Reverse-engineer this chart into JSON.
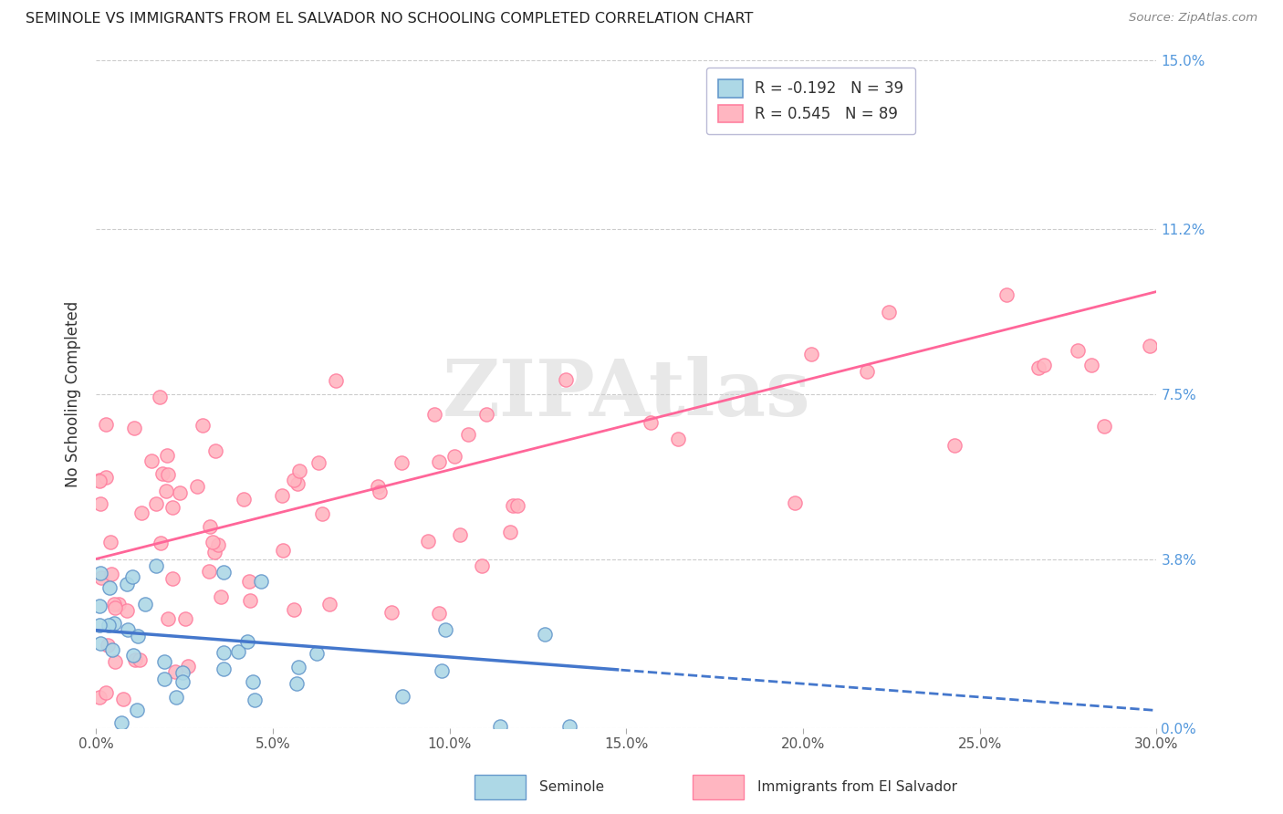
{
  "title": "SEMINOLE VS IMMIGRANTS FROM EL SALVADOR NO SCHOOLING COMPLETED CORRELATION CHART",
  "source": "Source: ZipAtlas.com",
  "ylabel": "No Schooling Completed",
  "xlim": [
    0.0,
    0.3
  ],
  "ylim": [
    0.0,
    0.15
  ],
  "ytick_vals": [
    0.0,
    0.038,
    0.075,
    0.112,
    0.15
  ],
  "ytick_labels": [
    "0.0%",
    "3.8%",
    "7.5%",
    "11.2%",
    "15.0%"
  ],
  "xtick_vals": [
    0.0,
    0.05,
    0.1,
    0.15,
    0.2,
    0.25,
    0.3
  ],
  "xtick_labels": [
    "0.0%",
    "5.0%",
    "10.0%",
    "15.0%",
    "20.0%",
    "25.0%",
    "30.0%"
  ],
  "seminole_R": -0.192,
  "seminole_N": 39,
  "salvador_R": 0.545,
  "salvador_N": 89,
  "seminole_fill": "#ADD8E6",
  "seminole_edge": "#6699CC",
  "salvador_fill": "#FFB6C1",
  "salvador_edge": "#FF80A0",
  "seminole_line_color": "#4477CC",
  "salvador_line_color": "#FF6699",
  "background_color": "#ffffff",
  "grid_color": "#cccccc",
  "watermark_text": "ZIPAtlas",
  "legend_label_seminole": "Seminole",
  "legend_label_salvador": "Immigrants from El Salvador",
  "title_color": "#222222",
  "source_color": "#888888",
  "tick_color": "#5599DD",
  "ylabel_color": "#333333"
}
